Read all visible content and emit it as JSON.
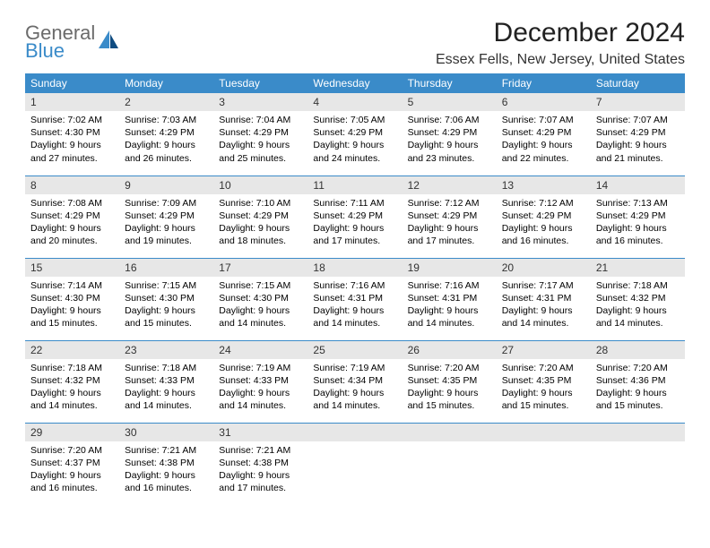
{
  "brand": {
    "line1": "General",
    "line2": "Blue"
  },
  "title": "December 2024",
  "subtitle": "Essex Fells, New Jersey, United States",
  "colors": {
    "header_bg": "#3a8bc9",
    "header_fg": "#ffffff",
    "daynum_bg": "#e7e7e7",
    "rule": "#3a8bc9",
    "brand_gray": "#6b6b6b",
    "brand_blue": "#3a8bc9"
  },
  "weekdays": [
    "Sunday",
    "Monday",
    "Tuesday",
    "Wednesday",
    "Thursday",
    "Friday",
    "Saturday"
  ],
  "weeks": [
    [
      {
        "n": "1",
        "sr": "Sunrise: 7:02 AM",
        "ss": "Sunset: 4:30 PM",
        "d1": "Daylight: 9 hours",
        "d2": "and 27 minutes."
      },
      {
        "n": "2",
        "sr": "Sunrise: 7:03 AM",
        "ss": "Sunset: 4:29 PM",
        "d1": "Daylight: 9 hours",
        "d2": "and 26 minutes."
      },
      {
        "n": "3",
        "sr": "Sunrise: 7:04 AM",
        "ss": "Sunset: 4:29 PM",
        "d1": "Daylight: 9 hours",
        "d2": "and 25 minutes."
      },
      {
        "n": "4",
        "sr": "Sunrise: 7:05 AM",
        "ss": "Sunset: 4:29 PM",
        "d1": "Daylight: 9 hours",
        "d2": "and 24 minutes."
      },
      {
        "n": "5",
        "sr": "Sunrise: 7:06 AM",
        "ss": "Sunset: 4:29 PM",
        "d1": "Daylight: 9 hours",
        "d2": "and 23 minutes."
      },
      {
        "n": "6",
        "sr": "Sunrise: 7:07 AM",
        "ss": "Sunset: 4:29 PM",
        "d1": "Daylight: 9 hours",
        "d2": "and 22 minutes."
      },
      {
        "n": "7",
        "sr": "Sunrise: 7:07 AM",
        "ss": "Sunset: 4:29 PM",
        "d1": "Daylight: 9 hours",
        "d2": "and 21 minutes."
      }
    ],
    [
      {
        "n": "8",
        "sr": "Sunrise: 7:08 AM",
        "ss": "Sunset: 4:29 PM",
        "d1": "Daylight: 9 hours",
        "d2": "and 20 minutes."
      },
      {
        "n": "9",
        "sr": "Sunrise: 7:09 AM",
        "ss": "Sunset: 4:29 PM",
        "d1": "Daylight: 9 hours",
        "d2": "and 19 minutes."
      },
      {
        "n": "10",
        "sr": "Sunrise: 7:10 AM",
        "ss": "Sunset: 4:29 PM",
        "d1": "Daylight: 9 hours",
        "d2": "and 18 minutes."
      },
      {
        "n": "11",
        "sr": "Sunrise: 7:11 AM",
        "ss": "Sunset: 4:29 PM",
        "d1": "Daylight: 9 hours",
        "d2": "and 17 minutes."
      },
      {
        "n": "12",
        "sr": "Sunrise: 7:12 AM",
        "ss": "Sunset: 4:29 PM",
        "d1": "Daylight: 9 hours",
        "d2": "and 17 minutes."
      },
      {
        "n": "13",
        "sr": "Sunrise: 7:12 AM",
        "ss": "Sunset: 4:29 PM",
        "d1": "Daylight: 9 hours",
        "d2": "and 16 minutes."
      },
      {
        "n": "14",
        "sr": "Sunrise: 7:13 AM",
        "ss": "Sunset: 4:29 PM",
        "d1": "Daylight: 9 hours",
        "d2": "and 16 minutes."
      }
    ],
    [
      {
        "n": "15",
        "sr": "Sunrise: 7:14 AM",
        "ss": "Sunset: 4:30 PM",
        "d1": "Daylight: 9 hours",
        "d2": "and 15 minutes."
      },
      {
        "n": "16",
        "sr": "Sunrise: 7:15 AM",
        "ss": "Sunset: 4:30 PM",
        "d1": "Daylight: 9 hours",
        "d2": "and 15 minutes."
      },
      {
        "n": "17",
        "sr": "Sunrise: 7:15 AM",
        "ss": "Sunset: 4:30 PM",
        "d1": "Daylight: 9 hours",
        "d2": "and 14 minutes."
      },
      {
        "n": "18",
        "sr": "Sunrise: 7:16 AM",
        "ss": "Sunset: 4:31 PM",
        "d1": "Daylight: 9 hours",
        "d2": "and 14 minutes."
      },
      {
        "n": "19",
        "sr": "Sunrise: 7:16 AM",
        "ss": "Sunset: 4:31 PM",
        "d1": "Daylight: 9 hours",
        "d2": "and 14 minutes."
      },
      {
        "n": "20",
        "sr": "Sunrise: 7:17 AM",
        "ss": "Sunset: 4:31 PM",
        "d1": "Daylight: 9 hours",
        "d2": "and 14 minutes."
      },
      {
        "n": "21",
        "sr": "Sunrise: 7:18 AM",
        "ss": "Sunset: 4:32 PM",
        "d1": "Daylight: 9 hours",
        "d2": "and 14 minutes."
      }
    ],
    [
      {
        "n": "22",
        "sr": "Sunrise: 7:18 AM",
        "ss": "Sunset: 4:32 PM",
        "d1": "Daylight: 9 hours",
        "d2": "and 14 minutes."
      },
      {
        "n": "23",
        "sr": "Sunrise: 7:18 AM",
        "ss": "Sunset: 4:33 PM",
        "d1": "Daylight: 9 hours",
        "d2": "and 14 minutes."
      },
      {
        "n": "24",
        "sr": "Sunrise: 7:19 AM",
        "ss": "Sunset: 4:33 PM",
        "d1": "Daylight: 9 hours",
        "d2": "and 14 minutes."
      },
      {
        "n": "25",
        "sr": "Sunrise: 7:19 AM",
        "ss": "Sunset: 4:34 PM",
        "d1": "Daylight: 9 hours",
        "d2": "and 14 minutes."
      },
      {
        "n": "26",
        "sr": "Sunrise: 7:20 AM",
        "ss": "Sunset: 4:35 PM",
        "d1": "Daylight: 9 hours",
        "d2": "and 15 minutes."
      },
      {
        "n": "27",
        "sr": "Sunrise: 7:20 AM",
        "ss": "Sunset: 4:35 PM",
        "d1": "Daylight: 9 hours",
        "d2": "and 15 minutes."
      },
      {
        "n": "28",
        "sr": "Sunrise: 7:20 AM",
        "ss": "Sunset: 4:36 PM",
        "d1": "Daylight: 9 hours",
        "d2": "and 15 minutes."
      }
    ],
    [
      {
        "n": "29",
        "sr": "Sunrise: 7:20 AM",
        "ss": "Sunset: 4:37 PM",
        "d1": "Daylight: 9 hours",
        "d2": "and 16 minutes."
      },
      {
        "n": "30",
        "sr": "Sunrise: 7:21 AM",
        "ss": "Sunset: 4:38 PM",
        "d1": "Daylight: 9 hours",
        "d2": "and 16 minutes."
      },
      {
        "n": "31",
        "sr": "Sunrise: 7:21 AM",
        "ss": "Sunset: 4:38 PM",
        "d1": "Daylight: 9 hours",
        "d2": "and 17 minutes."
      },
      {
        "empty": true
      },
      {
        "empty": true
      },
      {
        "empty": true
      },
      {
        "empty": true
      }
    ]
  ]
}
